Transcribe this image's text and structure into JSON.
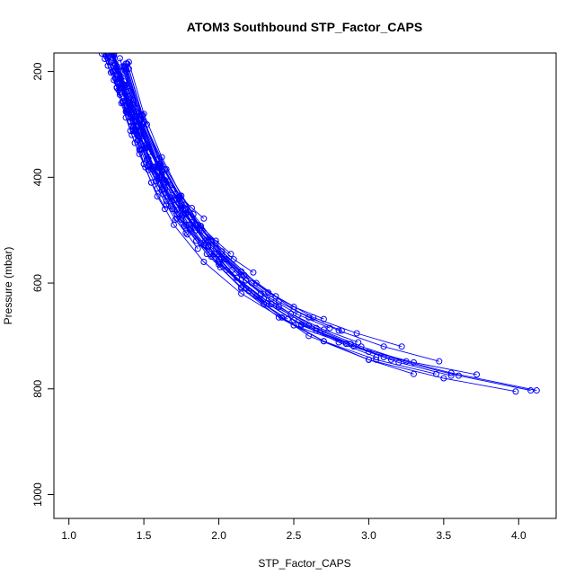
{
  "chart_data": {
    "type": "line",
    "title": "ATOM3 Southbound STP_Factor_CAPS",
    "xlabel": "STP_Factor_CAPS",
    "ylabel": "Pressure (mbar)",
    "xlim": [
      0.9,
      4.25
    ],
    "ylim": [
      1045,
      165
    ],
    "y_inverted": true,
    "grid": false,
    "legend": "none",
    "x_ticks": [
      1.0,
      1.5,
      2.0,
      2.5,
      3.0,
      3.5,
      4.0
    ],
    "x_tick_labels": [
      "1.0",
      "1.5",
      "2.0",
      "2.5",
      "3.0",
      "3.5",
      "4.0"
    ],
    "y_ticks": [
      200,
      400,
      600,
      800,
      1000
    ],
    "y_tick_labels": [
      "200",
      "400",
      "600",
      "800",
      "1000"
    ],
    "series_color": "#0000ff",
    "series": [
      {
        "x": [
          4.12,
          3.55,
          3.0,
          2.5,
          2.15,
          1.9,
          1.7,
          1.55,
          1.42,
          1.32
        ],
        "y": [
          803,
          770,
          730,
          680,
          620,
          560,
          490,
          410,
          320,
          220
        ]
      },
      {
        "x": [
          4.08,
          3.6,
          3.1,
          2.65,
          2.3,
          2.0,
          1.78,
          1.6,
          1.45,
          1.34
        ],
        "y": [
          803,
          775,
          740,
          690,
          630,
          565,
          490,
          400,
          310,
          215
        ]
      },
      {
        "x": [
          3.98,
          3.5,
          3.0,
          2.6,
          2.3,
          2.05,
          1.85,
          1.65,
          1.5,
          1.38
        ],
        "y": [
          805,
          780,
          745,
          700,
          640,
          575,
          500,
          410,
          320,
          225
        ]
      },
      {
        "x": [
          3.72,
          3.3,
          2.9,
          2.55,
          2.25,
          2.0,
          1.8,
          1.62,
          1.48,
          1.35
        ],
        "y": [
          773,
          750,
          720,
          680,
          625,
          560,
          490,
          400,
          310,
          210
        ]
      },
      {
        "x": [
          3.55,
          3.2,
          2.85,
          2.5,
          2.2,
          1.95,
          1.75,
          1.58,
          1.45,
          1.33
        ],
        "y": [
          775,
          750,
          715,
          670,
          615,
          550,
          480,
          395,
          305,
          200
        ]
      },
      {
        "x": [
          3.47,
          3.1,
          2.8,
          2.5,
          2.25,
          2.02,
          1.83,
          1.65,
          1.5,
          1.38
        ],
        "y": [
          748,
          720,
          690,
          650,
          600,
          540,
          470,
          385,
          295,
          195
        ]
      },
      {
        "x": [
          3.45,
          3.05,
          2.7,
          2.4,
          2.15,
          1.92,
          1.72,
          1.56,
          1.43,
          1.32
        ],
        "y": [
          772,
          745,
          710,
          665,
          610,
          545,
          470,
          385,
          295,
          195
        ]
      },
      {
        "x": [
          3.3,
          3.0,
          2.7,
          2.42,
          2.18,
          1.97,
          1.78,
          1.62,
          1.49,
          1.38
        ],
        "y": [
          772,
          745,
          710,
          665,
          610,
          545,
          470,
          390,
          300,
          200
        ]
      },
      {
        "x": [
          3.25,
          2.95,
          2.65,
          2.4,
          2.18,
          1.98,
          1.8,
          1.64,
          1.5,
          1.4
        ],
        "y": [
          748,
          720,
          685,
          645,
          595,
          535,
          465,
          385,
          295,
          195
        ]
      },
      {
        "x": [
          3.22,
          2.92,
          2.63,
          2.38,
          2.15,
          1.95,
          1.77,
          1.61,
          1.48,
          1.37
        ],
        "y": [
          720,
          695,
          665,
          625,
          578,
          520,
          452,
          375,
          290,
          190
        ]
      },
      {
        "x": [
          3.15,
          2.88,
          2.6,
          2.35,
          2.12,
          1.93,
          1.75,
          1.6,
          1.47,
          1.36
        ],
        "y": [
          745,
          715,
          680,
          640,
          590,
          530,
          460,
          380,
          290,
          190
        ]
      },
      {
        "x": [
          3.05,
          2.8,
          2.55,
          2.32,
          2.12,
          1.93,
          1.76,
          1.6,
          1.47,
          1.37
        ],
        "y": [
          740,
          712,
          678,
          638,
          590,
          532,
          462,
          382,
          292,
          192
        ]
      },
      {
        "x": [
          2.93,
          2.7,
          2.48,
          2.28,
          2.09,
          1.91,
          1.75,
          1.6,
          1.48,
          1.38
        ],
        "y": [
          712,
          688,
          658,
          620,
          575,
          520,
          455,
          378,
          290,
          190
        ]
      },
      {
        "x": [
          2.82,
          2.6,
          2.4,
          2.22,
          2.05,
          1.89,
          1.74,
          1.6,
          1.48,
          1.38
        ],
        "y": [
          690,
          665,
          635,
          600,
          555,
          500,
          438,
          365,
          282,
          185
        ]
      },
      {
        "x": [
          2.74,
          2.53,
          2.35,
          2.18,
          2.02,
          1.87,
          1.73,
          1.6,
          1.49,
          1.39
        ],
        "y": [
          685,
          660,
          630,
          595,
          552,
          500,
          438,
          365,
          282,
          185
        ]
      },
      {
        "x": [
          2.7,
          2.5,
          2.33,
          2.17,
          2.02,
          1.88,
          1.75,
          1.62,
          1.5,
          1.4
        ],
        "y": [
          668,
          645,
          618,
          585,
          545,
          495,
          435,
          362,
          280,
          182
        ]
      },
      {
        "x": [
          2.46,
          2.3,
          2.15,
          2.01,
          1.88,
          1.76,
          1.64,
          1.53,
          1.43,
          1.34
        ],
        "y": [
          668,
          640,
          608,
          570,
          525,
          472,
          410,
          340,
          262,
          175
        ]
      },
      {
        "x": [
          2.23,
          2.1,
          1.98,
          1.86,
          1.75,
          1.64,
          1.54,
          1.45,
          1.37,
          1.3
        ],
        "y": [
          580,
          555,
          525,
          490,
          450,
          405,
          352,
          292,
          228,
          165
        ]
      },
      {
        "x": [
          2.15,
          2.04,
          1.93,
          1.82,
          1.72,
          1.62,
          1.53,
          1.45,
          1.37,
          1.3
        ],
        "y": [
          585,
          555,
          522,
          485,
          442,
          395,
          342,
          285,
          225,
          165
        ]
      },
      {
        "x": [
          2.08,
          1.98,
          1.88,
          1.78,
          1.69,
          1.6,
          1.52,
          1.44,
          1.37,
          1.3
        ],
        "y": [
          545,
          520,
          492,
          460,
          424,
          383,
          337,
          285,
          228,
          168
        ]
      },
      {
        "x": [
          2.0,
          1.9,
          1.81,
          1.72,
          1.64,
          1.56,
          1.49,
          1.42,
          1.36,
          1.3
        ],
        "y": [
          555,
          528,
          497,
          462,
          423,
          380,
          332,
          280,
          224,
          166
        ]
      },
      {
        "x": [
          1.94,
          1.85,
          1.77,
          1.69,
          1.62,
          1.55,
          1.48,
          1.42,
          1.36,
          1.3
        ],
        "y": [
          545,
          520,
          492,
          460,
          424,
          383,
          337,
          286,
          230,
          170
        ]
      },
      {
        "x": [
          1.93,
          1.84,
          1.76,
          1.68,
          1.6,
          1.53,
          1.47,
          1.41,
          1.35,
          1.3
        ],
        "y": [
          518,
          495,
          468,
          438,
          404,
          365,
          322,
          274,
          222,
          166
        ]
      },
      {
        "x": [
          1.9,
          1.82,
          1.74,
          1.66,
          1.59,
          1.52,
          1.46,
          1.4,
          1.34,
          1.29
        ],
        "y": [
          478,
          458,
          435,
          408,
          377,
          342,
          302,
          258,
          210,
          160
        ]
      },
      {
        "x": [
          1.86,
          1.79,
          1.72,
          1.65,
          1.58,
          1.52,
          1.46,
          1.4,
          1.34,
          1.29
        ],
        "y": [
          535,
          508,
          478,
          445,
          408,
          367,
          322,
          272,
          220,
          165
        ]
      },
      {
        "x": [
          1.84,
          1.77,
          1.7,
          1.63,
          1.57,
          1.51,
          1.45,
          1.39,
          1.34,
          1.29
        ],
        "y": [
          490,
          468,
          443,
          414,
          381,
          344,
          303,
          258,
          210,
          162
        ]
      },
      {
        "x": [
          1.78,
          1.71,
          1.65,
          1.59,
          1.53,
          1.48,
          1.43,
          1.38,
          1.33,
          1.28
        ],
        "y": [
          505,
          480,
          452,
          421,
          386,
          347,
          304,
          257,
          208,
          160
        ]
      },
      {
        "x": [
          1.68,
          1.63,
          1.58,
          1.53,
          1.49,
          1.44,
          1.4,
          1.36,
          1.32,
          1.28
        ],
        "y": [
          455,
          432,
          407,
          379,
          347,
          312,
          274,
          233,
          190,
          160
        ]
      },
      {
        "x": [
          1.64,
          1.59,
          1.55,
          1.51,
          1.47,
          1.43,
          1.39,
          1.35,
          1.31,
          1.27
        ],
        "y": [
          460,
          436,
          410,
          381,
          348,
          312,
          273,
          231,
          188,
          160
        ]
      },
      {
        "x": [
          1.5,
          1.47,
          1.44,
          1.41,
          1.38,
          1.35,
          1.32,
          1.29,
          1.26,
          1.23
        ],
        "y": [
          375,
          356,
          335,
          312,
          287,
          260,
          231,
          200,
          175,
          160
        ]
      },
      {
        "x": [
          1.52,
          1.49,
          1.46,
          1.43,
          1.4,
          1.37,
          1.34,
          1.31,
          1.28,
          1.25
        ],
        "y": [
          300,
          285,
          270,
          254,
          237,
          219,
          200,
          185,
          170,
          160
        ]
      },
      {
        "x": [
          1.46,
          1.43,
          1.41,
          1.38,
          1.36,
          1.33,
          1.31,
          1.28,
          1.26,
          1.23
        ],
        "y": [
          330,
          313,
          295,
          276,
          256,
          235,
          213,
          191,
          172,
          160
        ]
      },
      {
        "x": [
          1.43,
          1.41,
          1.39,
          1.36,
          1.34,
          1.32,
          1.3,
          1.27,
          1.25,
          1.22
        ],
        "y": [
          310,
          294,
          277,
          259,
          240,
          220,
          200,
          182,
          168,
          160
        ]
      },
      {
        "x": [
          1.38,
          1.36,
          1.34,
          1.32,
          1.3,
          1.28,
          1.26,
          1.24,
          1.22,
          1.2
        ],
        "y": [
          270,
          257,
          244,
          230,
          216,
          202,
          189,
          176,
          166,
          160
        ]
      },
      {
        "x": [
          1.48,
          1.45,
          1.42,
          1.39,
          1.36,
          1.34,
          1.31,
          1.28,
          1.26,
          1.23
        ],
        "y": [
          290,
          276,
          261,
          246,
          230,
          214,
          198,
          183,
          170,
          160
        ]
      }
    ]
  }
}
